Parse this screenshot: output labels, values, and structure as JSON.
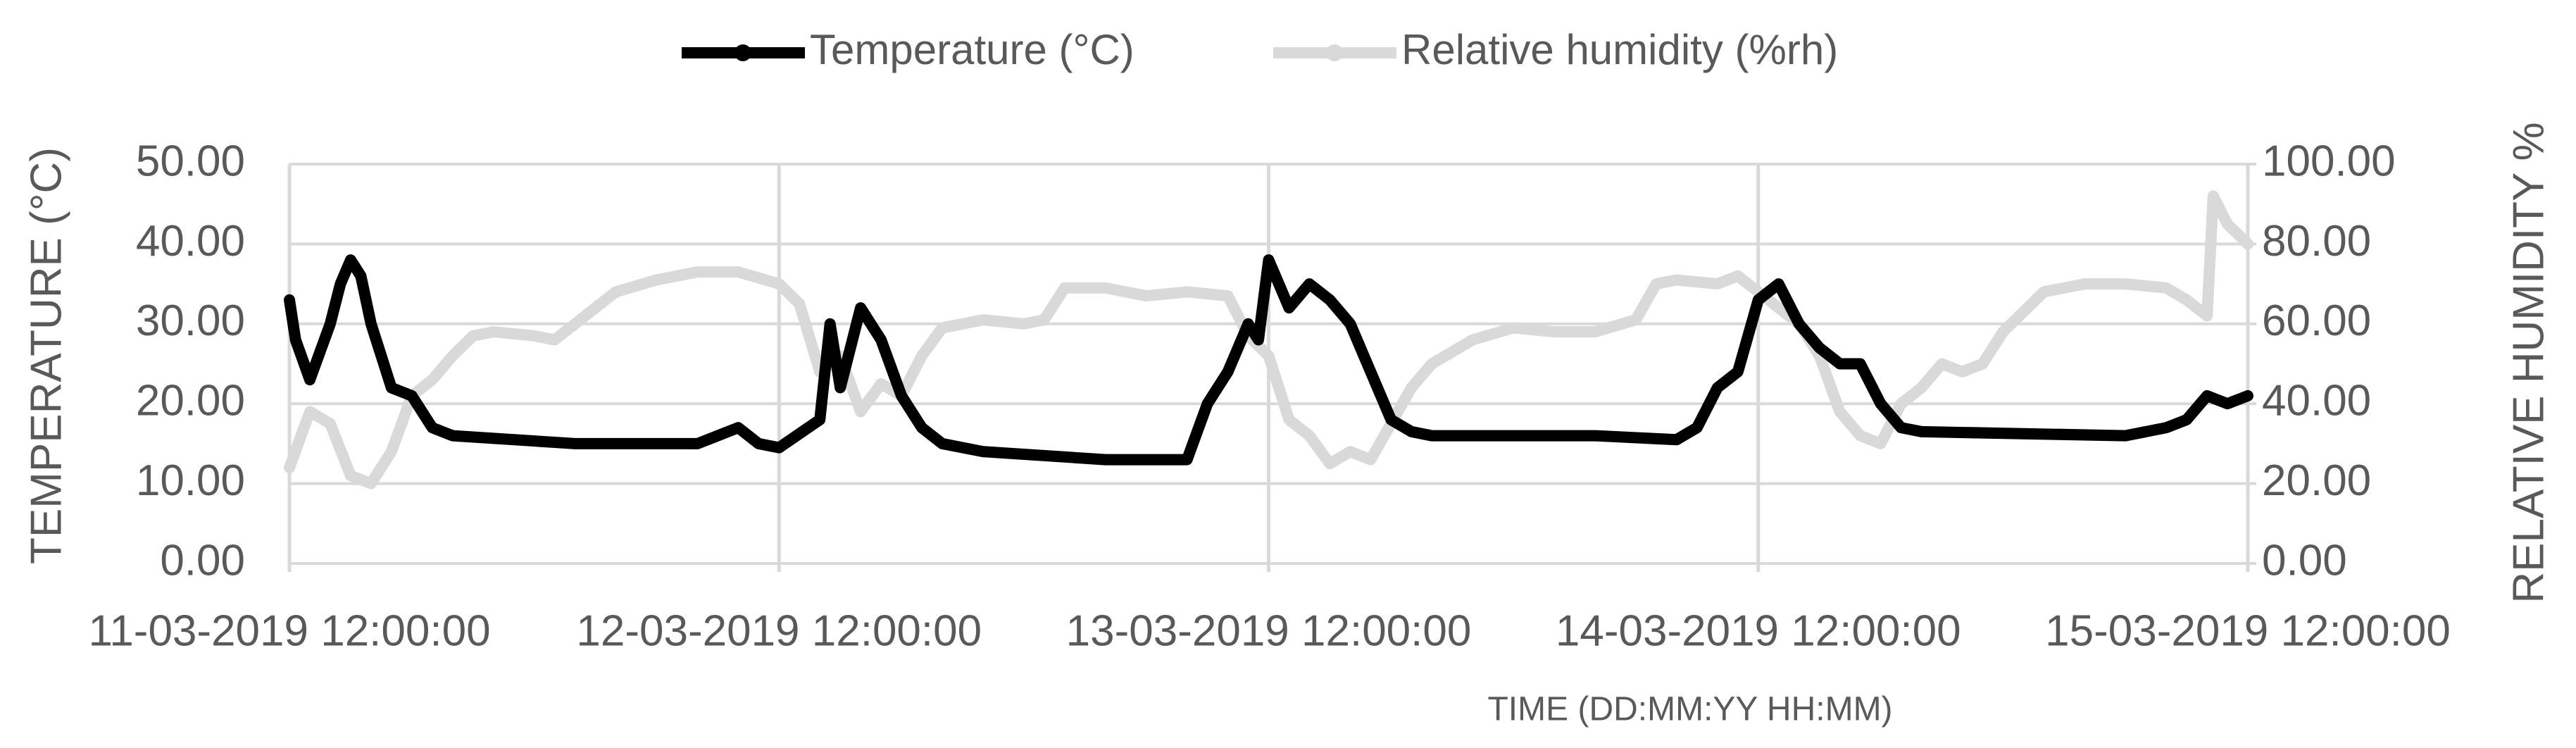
{
  "chart_data": {
    "type": "line",
    "legend": "top",
    "grid": true,
    "xlabel": "TIME (DD:MM:YY HH:MM)",
    "ylabel": "TEMPERATURE (°C)",
    "y2label": "RELATIVE HUMIDITY %",
    "xlim": [
      0,
      96
    ],
    "xticks": [
      {
        "value": 0,
        "label": "11-03-2019 12:00:00"
      },
      {
        "value": 24,
        "label": "12-03-2019 12:00:00"
      },
      {
        "value": 48,
        "label": "13-03-2019 12:00:00"
      },
      {
        "value": 72,
        "label": "14-03-2019 12:00:00"
      },
      {
        "value": 96,
        "label": "15-03-2019 12:00:00"
      }
    ],
    "ylim": [
      0,
      50
    ],
    "yticks": [
      {
        "value": 0,
        "label": "0.00"
      },
      {
        "value": 10,
        "label": "10.00"
      },
      {
        "value": 20,
        "label": "20.00"
      },
      {
        "value": 30,
        "label": "30.00"
      },
      {
        "value": 40,
        "label": "40.00"
      },
      {
        "value": 50,
        "label": "50.00"
      }
    ],
    "y2lim": [
      0,
      100
    ],
    "y2ticks": [
      {
        "value": 0,
        "label": "0.00"
      },
      {
        "value": 20,
        "label": "20.00"
      },
      {
        "value": 40,
        "label": "40.00"
      },
      {
        "value": 60,
        "label": "60.00"
      },
      {
        "value": 80,
        "label": "80.00"
      },
      {
        "value": 100,
        "label": "100.00"
      }
    ],
    "series": [
      {
        "name": "Temperature (°C)",
        "color": "#000000",
        "x": [
          0,
          0.3,
          1,
          2,
          2.5,
          3,
          3.5,
          4,
          5,
          6,
          7,
          8,
          14,
          16,
          20,
          22,
          23,
          24,
          26,
          26.5,
          27,
          28,
          29,
          30,
          31,
          32,
          34,
          40,
          44,
          45,
          46,
          47,
          47.5,
          48,
          49,
          50,
          51,
          52,
          53,
          54,
          55,
          56,
          60,
          64,
          68,
          69,
          70,
          71,
          72,
          73,
          74,
          75,
          76,
          77,
          78,
          79,
          80,
          90,
          92,
          93,
          94,
          95,
          96
        ],
        "values": [
          33,
          28,
          23,
          30,
          35,
          38,
          36,
          30,
          22,
          21,
          17,
          16,
          15,
          15,
          15,
          17,
          15,
          14.5,
          18,
          30,
          22,
          32,
          28,
          21,
          17,
          15,
          14,
          13,
          13,
          20,
          24,
          30,
          28,
          38,
          32,
          35,
          33,
          30,
          24,
          18,
          16.5,
          16,
          16,
          16,
          15.5,
          17,
          22,
          24,
          33,
          35,
          30,
          27,
          25,
          25,
          20,
          17,
          16.5,
          16,
          17,
          18,
          21,
          20,
          21
        ]
      },
      {
        "name": "Relative humidity (%rh)",
        "color": "#d9d9d9",
        "axis": "y2",
        "x": [
          0,
          1,
          2,
          3,
          4,
          5,
          6,
          7,
          8,
          9,
          10,
          12,
          13,
          14,
          15,
          16,
          18,
          20,
          22,
          24,
          25,
          26,
          27,
          28,
          29,
          30,
          31,
          32,
          34,
          36,
          37,
          38,
          40,
          42,
          44,
          46,
          47,
          48,
          49,
          50,
          51,
          52,
          53,
          54,
          55,
          56,
          58,
          60,
          62,
          64,
          66,
          67,
          68,
          70,
          71,
          72,
          74,
          75,
          76,
          77,
          78,
          79,
          80,
          81,
          82,
          83,
          84,
          86,
          88,
          90,
          92,
          93,
          94,
          94.3,
          95,
          96
        ],
        "values": [
          24,
          38,
          35,
          22,
          20,
          28,
          42,
          46,
          52,
          57,
          58,
          57,
          56,
          60,
          64,
          68,
          71,
          73,
          73,
          70,
          65,
          48,
          52,
          38,
          45,
          42,
          52,
          59,
          61,
          60,
          61,
          69,
          69,
          67,
          68,
          67,
          57,
          52,
          36,
          32,
          25,
          28,
          26,
          35,
          44,
          50,
          56,
          59,
          58,
          58,
          61,
          70,
          71,
          70,
          72,
          68,
          60,
          52,
          38,
          32,
          30,
          40,
          44,
          50,
          48,
          50,
          58,
          68,
          70,
          70,
          69,
          66,
          62,
          92,
          85,
          80
        ]
      }
    ]
  }
}
